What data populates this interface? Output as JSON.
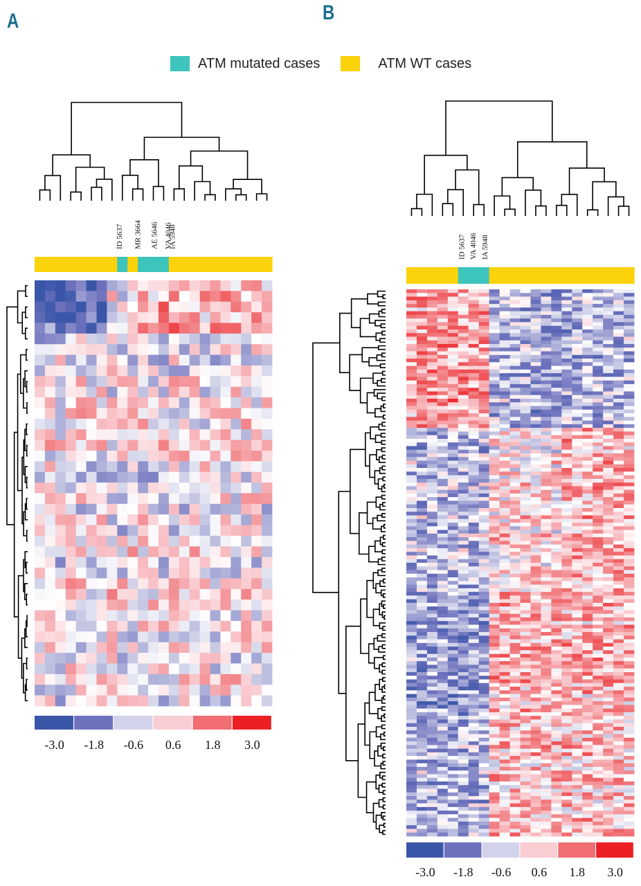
{
  "panels": {
    "a": {
      "letter": "A"
    },
    "b": {
      "letter": "B"
    }
  },
  "legend": {
    "mutated": {
      "label": "ATM mutated cases",
      "color": "#3cc4bd"
    },
    "wt": {
      "label": "ATM WT cases",
      "color": "#fcd20a"
    }
  },
  "chart_data": [
    {
      "type": "heatmap",
      "panel": "A",
      "title": "",
      "columns": 23,
      "rows": 40,
      "column_annotation": [
        "WT",
        "WT",
        "WT",
        "WT",
        "WT",
        "WT",
        "WT",
        "WT",
        "Mut",
        "WT",
        "Mut",
        "Mut",
        "Mut",
        "WT",
        "WT",
        "WT",
        "WT",
        "WT",
        "WT",
        "WT",
        "WT",
        "WT",
        "WT"
      ],
      "case_labels": [
        "ID 5637",
        "MR 3664",
        "AE 5646",
        "VA 4046",
        "IA 5948"
      ],
      "color_scale": {
        "ticks": [
          "-3.0",
          "-1.8",
          "-0.6",
          "0.6",
          "1.8",
          "3.0"
        ],
        "colors": [
          "#3a56a8",
          "#6e72bd",
          "#d2d3ea",
          "#f9cdd2",
          "#f06e72",
          "#ec2024"
        ]
      }
    },
    {
      "type": "heatmap",
      "panel": "B",
      "title": "",
      "columns": 22,
      "rows": 150,
      "column_annotation": [
        "WT",
        "WT",
        "WT",
        "WT",
        "WT",
        "Mut",
        "Mut",
        "Mut",
        "WT",
        "WT",
        "WT",
        "WT",
        "WT",
        "WT",
        "WT",
        "WT",
        "WT",
        "WT",
        "WT",
        "WT",
        "WT",
        "WT"
      ],
      "case_labels": [
        "ID 5637",
        "VA 4046",
        "IA 5948"
      ],
      "color_scale": {
        "ticks": [
          "-3.0",
          "-1.8",
          "-0.6",
          "0.6",
          "1.8",
          "3.0"
        ],
        "colors": [
          "#3a56a8",
          "#6e72bd",
          "#d2d3ea",
          "#f9cdd2",
          "#f06e72",
          "#ec2024"
        ]
      }
    }
  ]
}
